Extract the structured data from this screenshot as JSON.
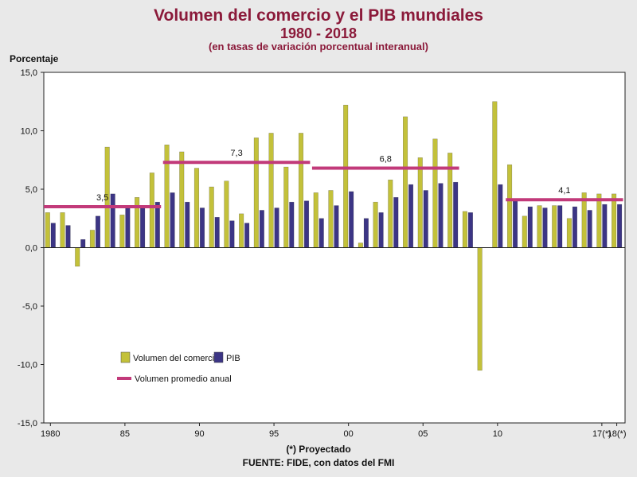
{
  "header": {
    "title": "Volumen del comercio y el PIB mundiales",
    "subtitle": "1980 - 2018",
    "subtitle2": "(en tasas de variación porcentual interanual)"
  },
  "footer": {
    "note": "(*) Proyectado",
    "source": "FUENTE: FIDE, con datos del FMI"
  },
  "colors": {
    "trade": "#c3c13a",
    "gdp": "#3c3585",
    "average": "#c23a7a",
    "title": "#8b1a3a"
  },
  "chart_data": {
    "type": "bar",
    "ylabel": "Porcentaje",
    "ylim": [
      -15,
      15
    ],
    "yticks": [
      15,
      10,
      5,
      0,
      -5,
      -10,
      -15
    ],
    "ytick_labels": [
      "15,0",
      "10,0",
      "5,0",
      "0,0",
      "-5,0",
      "-10,0",
      "-15,0"
    ],
    "categories": [
      "1980",
      "1981",
      "1982",
      "1983",
      "1984",
      "1985",
      "1986",
      "1987",
      "1988",
      "1989",
      "1990",
      "1991",
      "1992",
      "1993",
      "1994",
      "1995",
      "1996",
      "1997",
      "1998",
      "1999",
      "2000",
      "2001",
      "2002",
      "2003",
      "2004",
      "2005",
      "2006",
      "2007",
      "2008",
      "2009",
      "2010",
      "2011",
      "2012",
      "2013",
      "2014",
      "2015",
      "2016",
      "2017",
      "2018"
    ],
    "x_ticks": [
      {
        "index": 0,
        "label": "1980"
      },
      {
        "index": 5,
        "label": "85"
      },
      {
        "index": 10,
        "label": "90"
      },
      {
        "index": 15,
        "label": "95"
      },
      {
        "index": 20,
        "label": "00"
      },
      {
        "index": 25,
        "label": "05"
      },
      {
        "index": 30,
        "label": "10"
      },
      {
        "index": 37,
        "label": "17(*)"
      },
      {
        "index": 38,
        "label": "18(*)"
      }
    ],
    "series": [
      {
        "name": "Volumen del comercio",
        "values": [
          3.0,
          3.0,
          -1.6,
          1.5,
          8.6,
          2.8,
          4.3,
          6.4,
          8.8,
          8.2,
          6.8,
          5.2,
          5.7,
          2.9,
          9.4,
          9.8,
          6.9,
          9.8,
          4.7,
          4.9,
          12.2,
          0.4,
          3.9,
          5.8,
          11.2,
          7.7,
          9.3,
          8.1,
          3.1,
          -10.5,
          12.5,
          7.1,
          2.7,
          3.6,
          3.6,
          2.5,
          4.7,
          4.6,
          4.6
        ],
        "color": "#c3c13a"
      },
      {
        "name": "PIB",
        "values": [
          2.1,
          1.9,
          0.7,
          2.7,
          4.6,
          3.6,
          3.6,
          3.9,
          4.7,
          3.9,
          3.4,
          2.6,
          2.3,
          2.1,
          3.2,
          3.4,
          3.9,
          4.0,
          2.5,
          3.6,
          4.8,
          2.5,
          3.0,
          4.3,
          5.4,
          4.9,
          5.5,
          5.6,
          3.0,
          0.0,
          5.4,
          4.2,
          3.5,
          3.4,
          3.6,
          3.5,
          3.2,
          3.7,
          3.7
        ],
        "color": "#3c3585"
      }
    ],
    "averages": [
      {
        "start": 0,
        "end": 7,
        "value": 3.5,
        "label": "3,5"
      },
      {
        "start": 8,
        "end": 17,
        "value": 7.3,
        "label": "7,3"
      },
      {
        "start": 18,
        "end": 27,
        "value": 6.8,
        "label": "6,8"
      },
      {
        "start": 31,
        "end": 38,
        "value": 4.1,
        "label": "4,1"
      }
    ],
    "legend": [
      {
        "label": "Volumen del comercio",
        "kind": "bar",
        "color": "#c3c13a"
      },
      {
        "label": "PIB",
        "kind": "bar",
        "color": "#3c3585"
      },
      {
        "label": "Volumen promedio anual",
        "kind": "line",
        "color": "#c23a7a"
      }
    ],
    "legend_position": "bottom-left",
    "grid": false
  }
}
